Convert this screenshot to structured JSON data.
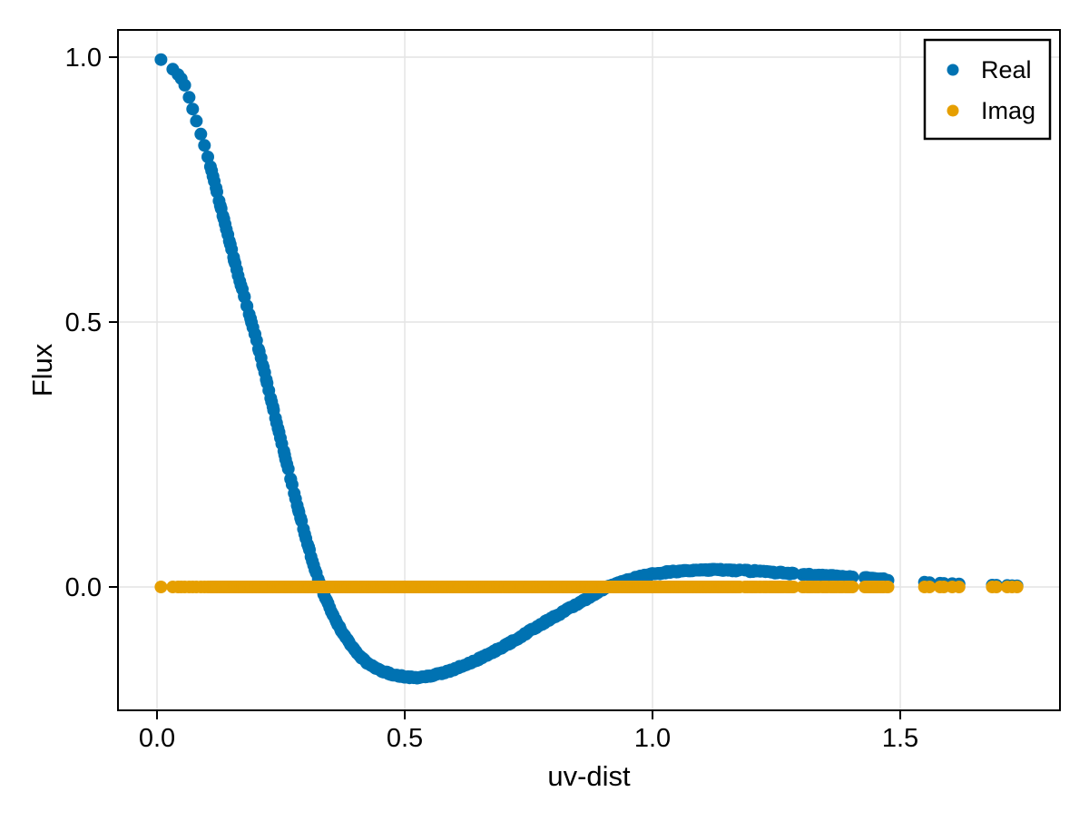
{
  "chart_data": {
    "type": "scatter",
    "title": "",
    "xlabel": "uv-dist",
    "ylabel": "Flux",
    "xlim": [
      -0.0788,
      1.8223
    ],
    "ylim": [
      -0.2329,
      1.0514
    ],
    "xticks": [
      0.0,
      0.5,
      1.0,
      1.5
    ],
    "xtick_labels": [
      "0.0",
      "0.5",
      "1.0",
      "1.5"
    ],
    "yticks": [
      0.0,
      0.5,
      1.0
    ],
    "ytick_labels": [
      "0.0",
      "0.5",
      "1.0"
    ],
    "grid": true,
    "grid_color": "#e4e4e4",
    "frame_color": "#000000",
    "background_color": "#ffffff",
    "marker_diameter_px": 14,
    "legend": {
      "position": "top-right",
      "entries": [
        {
          "label": "Real",
          "color": "#0072B2"
        },
        {
          "label": "Imag",
          "color": "#E69F00"
        }
      ]
    },
    "series": [
      {
        "name": "Real",
        "color": "#0072B2",
        "shape": "smooth curve sampled at uv points",
        "curve_anchors": [
          [
            0.0,
            1.002
          ],
          [
            0.05,
            0.958
          ],
          [
            0.08,
            0.878
          ],
          [
            0.1,
            0.82
          ],
          [
            0.13,
            0.712
          ],
          [
            0.16,
            0.602
          ],
          [
            0.2,
            0.468
          ],
          [
            0.25,
            0.278
          ],
          [
            0.3,
            0.094
          ],
          [
            0.331,
            0.0
          ],
          [
            0.38,
            -0.094
          ],
          [
            0.43,
            -0.147
          ],
          [
            0.48,
            -0.166
          ],
          [
            0.52,
            -0.171
          ],
          [
            0.57,
            -0.164
          ],
          [
            0.63,
            -0.144
          ],
          [
            0.7,
            -0.112
          ],
          [
            0.78,
            -0.068
          ],
          [
            0.86,
            -0.026
          ],
          [
            0.91,
            0.0
          ],
          [
            0.95,
            0.013
          ],
          [
            1.0,
            0.024
          ],
          [
            1.06,
            0.03
          ],
          [
            1.13,
            0.032
          ],
          [
            1.2,
            0.03
          ],
          [
            1.27,
            0.026
          ],
          [
            1.34,
            0.022
          ],
          [
            1.41,
            0.018
          ],
          [
            1.47,
            0.014
          ],
          [
            1.52,
            0.011
          ],
          [
            1.58,
            0.007
          ],
          [
            1.64,
            0.005
          ],
          [
            1.7,
            0.003
          ],
          [
            1.75,
            0.002
          ]
        ]
      },
      {
        "name": "Imag",
        "color": "#E69F00",
        "shape": "constant",
        "value": 0.0
      }
    ],
    "uv_sampling_segments": [
      {
        "start": 0.008,
        "end": 0.008,
        "n": 1,
        "dense": false
      },
      {
        "start": 0.033,
        "end": 0.104,
        "n": 10,
        "dense": false
      },
      {
        "start": 0.108,
        "end": 1.175,
        "n": 400,
        "dense": true
      },
      {
        "start": 1.188,
        "end": 1.285,
        "n": 26,
        "dense": true
      },
      {
        "start": 1.302,
        "end": 1.402,
        "n": 24,
        "dense": true
      },
      {
        "start": 1.427,
        "end": 1.476,
        "n": 13,
        "dense": true
      },
      {
        "start": 1.548,
        "end": 1.558,
        "n": 2,
        "dense": false
      },
      {
        "start": 1.578,
        "end": 1.588,
        "n": 2,
        "dense": false
      },
      {
        "start": 1.605,
        "end": 1.616,
        "n": 2,
        "dense": false
      },
      {
        "start": 1.684,
        "end": 1.692,
        "n": 2,
        "dense": false
      },
      {
        "start": 1.716,
        "end": 1.735,
        "n": 3,
        "dense": false
      }
    ]
  }
}
